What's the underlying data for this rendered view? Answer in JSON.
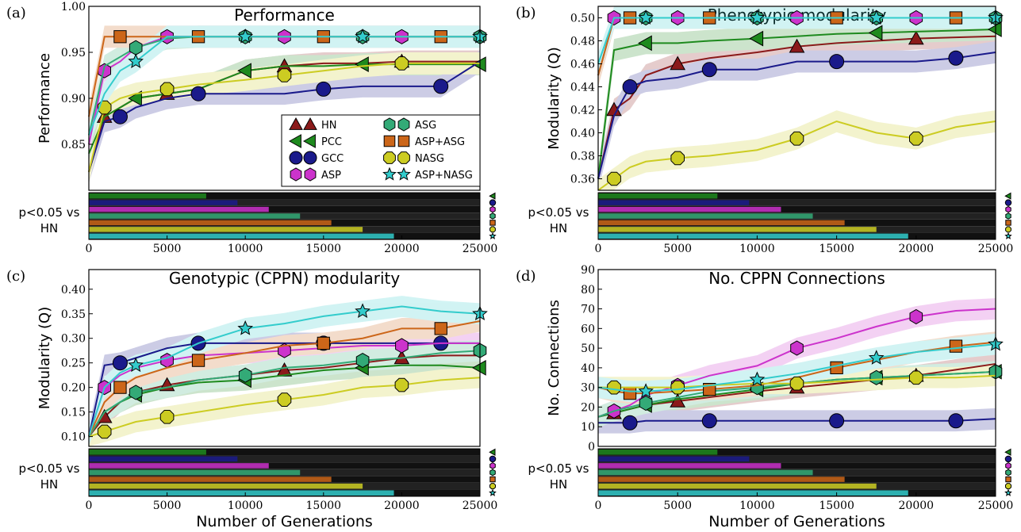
{
  "figure": {
    "xlabel": "Number of Generations",
    "sig_label_line1": "p<0.05 vs",
    "sig_label_line2": "HN"
  },
  "legend": [
    {
      "name": "HN",
      "color": "#8b1a1a",
      "marker": "triangle-up"
    },
    {
      "name": "PCC",
      "color": "#1e8a1e",
      "marker": "triangle-left"
    },
    {
      "name": "GCC",
      "color": "#1a1a8b",
      "marker": "circle"
    },
    {
      "name": "ASP",
      "color": "#cc33cc",
      "marker": "hexagon"
    },
    {
      "name": "ASG",
      "color": "#33aa77",
      "marker": "hexagon"
    },
    {
      "name": "ASP+ASG",
      "color": "#cc6619",
      "marker": "square"
    },
    {
      "name": "NASG",
      "color": "#cccc22",
      "marker": "octagon"
    },
    {
      "name": "ASP+NASG",
      "color": "#33cccc",
      "marker": "star"
    }
  ],
  "chart_data": [
    {
      "type": "line",
      "panel": "(a)",
      "title": "Performance",
      "ylabel": "Performance",
      "xlabel": "",
      "xlim": [
        0,
        25000
      ],
      "ylim": [
        0.8,
        1.0
      ],
      "xticks": [
        "0",
        "5000",
        "10000",
        "15000",
        "20000",
        "25000"
      ],
      "yticks": [
        "0.85",
        "0.90",
        "0.95",
        "1.00"
      ],
      "x": [
        0,
        1000,
        2000,
        3000,
        5000,
        7000,
        10000,
        12500,
        15000,
        17500,
        20000,
        22500,
        25000
      ],
      "series": [
        {
          "name": "HN",
          "values": [
            0.82,
            0.88,
            0.89,
            0.9,
            0.905,
            0.91,
            0.93,
            0.935,
            0.938,
            0.938,
            0.94,
            0.94,
            0.94
          ]
        },
        {
          "name": "PCC",
          "values": [
            0.84,
            0.88,
            0.89,
            0.9,
            0.905,
            0.91,
            0.93,
            0.935,
            0.935,
            0.937,
            0.937,
            0.937,
            0.937
          ]
        },
        {
          "name": "GCC",
          "values": [
            0.82,
            0.875,
            0.88,
            0.89,
            0.9,
            0.905,
            0.905,
            0.905,
            0.91,
            0.913,
            0.913,
            0.913,
            0.94
          ]
        },
        {
          "name": "ASP",
          "values": [
            0.85,
            0.93,
            0.94,
            0.955,
            0.967,
            0.967,
            0.967,
            0.967,
            0.967,
            0.967,
            0.967,
            0.967,
            0.967
          ]
        },
        {
          "name": "ASG",
          "values": [
            0.86,
            0.935,
            0.945,
            0.955,
            0.965,
            0.967,
            0.967,
            0.967,
            0.967,
            0.967,
            0.967,
            0.967,
            0.967
          ]
        },
        {
          "name": "ASP+ASG",
          "values": [
            0.88,
            0.967,
            0.967,
            0.967,
            0.967,
            0.967,
            0.967,
            0.967,
            0.967,
            0.967,
            0.967,
            0.967,
            0.967
          ]
        },
        {
          "name": "NASG",
          "values": [
            0.82,
            0.89,
            0.9,
            0.905,
            0.91,
            0.915,
            0.92,
            0.925,
            0.93,
            0.935,
            0.938,
            0.938,
            0.938
          ]
        },
        {
          "name": "ASP+NASG",
          "values": [
            0.86,
            0.905,
            0.93,
            0.94,
            0.967,
            0.967,
            0.967,
            0.967,
            0.967,
            0.967,
            0.967,
            0.967,
            0.967
          ]
        }
      ]
    },
    {
      "type": "line",
      "panel": "(b)",
      "title": "Phenotypic modularity",
      "ylabel": "Modularity (Q)",
      "xlabel": "",
      "xlim": [
        0,
        25000
      ],
      "ylim": [
        0.35,
        0.51
      ],
      "xticks": [
        "0",
        "5000",
        "10000",
        "15000",
        "20000",
        "25000"
      ],
      "yticks": [
        "0.36",
        "0.38",
        "0.40",
        "0.42",
        "0.44",
        "0.46",
        "0.48",
        "0.50"
      ],
      "x": [
        0,
        1000,
        2000,
        3000,
        5000,
        7000,
        10000,
        12500,
        15000,
        17500,
        20000,
        22500,
        25000
      ],
      "series": [
        {
          "name": "HN",
          "values": [
            0.36,
            0.42,
            0.43,
            0.45,
            0.46,
            0.465,
            0.47,
            0.475,
            0.478,
            0.48,
            0.482,
            0.483,
            0.484
          ]
        },
        {
          "name": "PCC",
          "values": [
            0.36,
            0.472,
            0.475,
            0.478,
            0.478,
            0.48,
            0.482,
            0.484,
            0.486,
            0.487,
            0.488,
            0.489,
            0.49
          ]
        },
        {
          "name": "GCC",
          "values": [
            0.36,
            0.415,
            0.44,
            0.445,
            0.448,
            0.455,
            0.455,
            0.462,
            0.462,
            0.462,
            0.462,
            0.465,
            0.47
          ]
        },
        {
          "name": "ASP",
          "values": [
            0.45,
            0.5,
            0.5,
            0.5,
            0.5,
            0.5,
            0.5,
            0.5,
            0.5,
            0.5,
            0.5,
            0.5,
            0.5
          ]
        },
        {
          "name": "ASG",
          "values": [
            0.45,
            0.5,
            0.5,
            0.5,
            0.5,
            0.5,
            0.5,
            0.5,
            0.5,
            0.5,
            0.5,
            0.5,
            0.5
          ]
        },
        {
          "name": "ASP+ASG",
          "values": [
            0.45,
            0.5,
            0.5,
            0.5,
            0.5,
            0.5,
            0.5,
            0.5,
            0.5,
            0.5,
            0.5,
            0.5,
            0.5
          ]
        },
        {
          "name": "NASG",
          "values": [
            0.35,
            0.36,
            0.37,
            0.375,
            0.378,
            0.38,
            0.385,
            0.395,
            0.41,
            0.4,
            0.395,
            0.405,
            0.41
          ]
        },
        {
          "name": "ASP+NASG",
          "values": [
            0.46,
            0.5,
            0.5,
            0.5,
            0.5,
            0.5,
            0.5,
            0.5,
            0.5,
            0.5,
            0.5,
            0.5,
            0.5
          ]
        }
      ]
    },
    {
      "type": "line",
      "panel": "(c)",
      "title": "Genotypic (CPPN) modularity",
      "ylabel": "Modularity (Q)",
      "xlabel": "Number of Generations",
      "xlim": [
        0,
        25000
      ],
      "ylim": [
        0.08,
        0.44
      ],
      "xticks": [
        "0",
        "5000",
        "10000",
        "15000",
        "20000",
        "25000"
      ],
      "yticks": [
        "0.10",
        "0.15",
        "0.20",
        "0.25",
        "0.30",
        "0.35",
        "0.40"
      ],
      "x": [
        0,
        1000,
        2000,
        3000,
        5000,
        7000,
        10000,
        12500,
        15000,
        17500,
        20000,
        22500,
        25000
      ],
      "series": [
        {
          "name": "HN",
          "values": [
            0.1,
            0.14,
            0.17,
            0.19,
            0.205,
            0.215,
            0.225,
            0.235,
            0.24,
            0.25,
            0.26,
            0.265,
            0.265
          ]
        },
        {
          "name": "PCC",
          "values": [
            0.1,
            0.15,
            0.17,
            0.185,
            0.2,
            0.21,
            0.215,
            0.225,
            0.235,
            0.24,
            0.245,
            0.245,
            0.24
          ]
        },
        {
          "name": "GCC",
          "values": [
            0.1,
            0.245,
            0.25,
            0.26,
            0.28,
            0.29,
            0.29,
            0.29,
            0.29,
            0.29,
            0.29,
            0.29,
            0.29
          ]
        },
        {
          "name": "ASP",
          "values": [
            0.1,
            0.2,
            0.225,
            0.24,
            0.255,
            0.265,
            0.27,
            0.275,
            0.28,
            0.285,
            0.285,
            0.29,
            0.29
          ]
        },
        {
          "name": "ASG",
          "values": [
            0.1,
            0.15,
            0.17,
            0.19,
            0.2,
            0.215,
            0.225,
            0.24,
            0.245,
            0.255,
            0.26,
            0.27,
            0.275
          ]
        },
        {
          "name": "ASP+ASG",
          "values": [
            0.1,
            0.17,
            0.2,
            0.22,
            0.24,
            0.255,
            0.27,
            0.285,
            0.29,
            0.3,
            0.32,
            0.32,
            0.335
          ]
        },
        {
          "name": "NASG",
          "values": [
            0.1,
            0.11,
            0.12,
            0.13,
            0.14,
            0.15,
            0.165,
            0.175,
            0.185,
            0.2,
            0.205,
            0.215,
            0.22
          ]
        },
        {
          "name": "ASP+NASG",
          "values": [
            0.1,
            0.2,
            0.23,
            0.245,
            0.26,
            0.29,
            0.32,
            0.33,
            0.345,
            0.355,
            0.365,
            0.355,
            0.35
          ]
        }
      ]
    },
    {
      "type": "line",
      "panel": "(d)",
      "title": "No. CPPN Connections",
      "ylabel": "No. Connections",
      "xlabel": "Number of Generations",
      "xlim": [
        0,
        25000
      ],
      "ylim": [
        0,
        90
      ],
      "xticks": [
        "0",
        "5000",
        "10000",
        "15000",
        "20000",
        "25000"
      ],
      "yticks": [
        "0",
        "10",
        "20",
        "30",
        "40",
        "50",
        "60",
        "70",
        "80",
        "90"
      ],
      "x": [
        0,
        1000,
        2000,
        3000,
        5000,
        7000,
        10000,
        12500,
        15000,
        17500,
        20000,
        22500,
        25000
      ],
      "series": [
        {
          "name": "HN",
          "values": [
            15,
            17,
            19,
            21,
            23,
            25,
            28,
            30,
            32,
            34,
            36,
            39,
            42
          ]
        },
        {
          "name": "PCC",
          "values": [
            15,
            17,
            19,
            21,
            24,
            26,
            29,
            32,
            34,
            35,
            36,
            37,
            38
          ]
        },
        {
          "name": "GCC",
          "values": [
            12,
            12,
            12,
            13,
            13,
            13,
            13,
            13,
            13,
            13,
            13,
            13,
            14
          ]
        },
        {
          "name": "ASP",
          "values": [
            15,
            18,
            21,
            26,
            31,
            36,
            41,
            50,
            55,
            61,
            66,
            69,
            70
          ]
        },
        {
          "name": "ASG",
          "values": [
            15,
            18,
            20,
            22,
            25,
            28,
            30,
            32,
            34,
            35,
            36,
            37,
            38
          ]
        },
        {
          "name": "ASP+ASG",
          "values": [
            30,
            28,
            27,
            27,
            28,
            29,
            31,
            35,
            40,
            44,
            48,
            51,
            53
          ]
        },
        {
          "name": "NASG",
          "values": [
            30,
            30,
            30,
            30,
            30,
            31,
            32,
            32,
            33,
            34,
            35,
            35,
            36
          ]
        },
        {
          "name": "ASP+NASG",
          "values": [
            30,
            29,
            28,
            28,
            29,
            31,
            34,
            37,
            41,
            45,
            48,
            50,
            52
          ]
        }
      ]
    }
  ]
}
